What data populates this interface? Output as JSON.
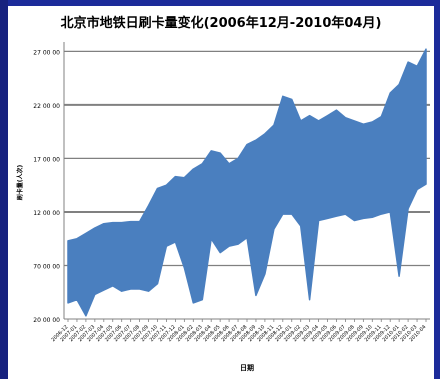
{
  "slide": {
    "background": "#1c2b9a",
    "panel_background": "#ffffff"
  },
  "chart_data": {
    "type": "area",
    "title": "北京市地铁日刷卡量变化(2006年12月-2010年04月)",
    "xlabel": "日期",
    "ylabel": "刷卡量(人次)",
    "ylim": [
      200000,
      2750000
    ],
    "yticks": [
      200000,
      700000,
      1200000,
      1700000,
      2200000,
      2700000
    ],
    "ytick_labels": [
      "20 00 00",
      "70 00 00",
      "12 00 00",
      "17 00 00",
      "22 00 00",
      "27 00 00"
    ],
    "grid": "horizontal",
    "legend": "none",
    "color": "#4a7fbf",
    "x": [
      "2006-12",
      "2007-01",
      "2007-02",
      "2007-03",
      "2007-04",
      "2007-05",
      "2007-06",
      "2007-07",
      "2007-08",
      "2007-09",
      "2007-10",
      "2007-11",
      "2007-12",
      "2008-01",
      "2008-02",
      "2008-03",
      "2008-04",
      "2008-05",
      "2008-06",
      "2008-07",
      "2008-08",
      "2008-09",
      "2008-10",
      "2008-11",
      "2008-12",
      "2009-01",
      "2009-02",
      "2009-03",
      "2009-04",
      "2009-05",
      "2009-06",
      "2009-07",
      "2009-08",
      "2009-09",
      "2009-10",
      "2009-11",
      "2009-12",
      "2010-01",
      "2010-02",
      "2010-03",
      "2010-04"
    ],
    "series": [
      {
        "upper": [
          930000,
          950000,
          1000000,
          1050000,
          1090000,
          1100000,
          1100000,
          1110000,
          1110000,
          1260000,
          1420000,
          1450000,
          1530000,
          1520000,
          1600000,
          1650000,
          1770000,
          1750000,
          1650000,
          1700000,
          1830000,
          1870000,
          1930000,
          2010000,
          2280000,
          2250000,
          2050000,
          2100000,
          2050000,
          2100000,
          2150000,
          2080000,
          2050000,
          2020000,
          2040000,
          2090000,
          2310000,
          2390000,
          2600000,
          2560000,
          2720000
        ],
        "lower": [
          350000,
          380000,
          230000,
          430000,
          470000,
          510000,
          460000,
          480000,
          480000,
          460000,
          530000,
          880000,
          920000,
          680000,
          350000,
          380000,
          950000,
          820000,
          880000,
          900000,
          960000,
          420000,
          620000,
          1040000,
          1180000,
          1180000,
          1070000,
          380000,
          1120000,
          1140000,
          1160000,
          1180000,
          1120000,
          1140000,
          1150000,
          1180000,
          1200000,
          600000,
          1230000,
          1410000,
          1460000
        ]
      }
    ]
  }
}
